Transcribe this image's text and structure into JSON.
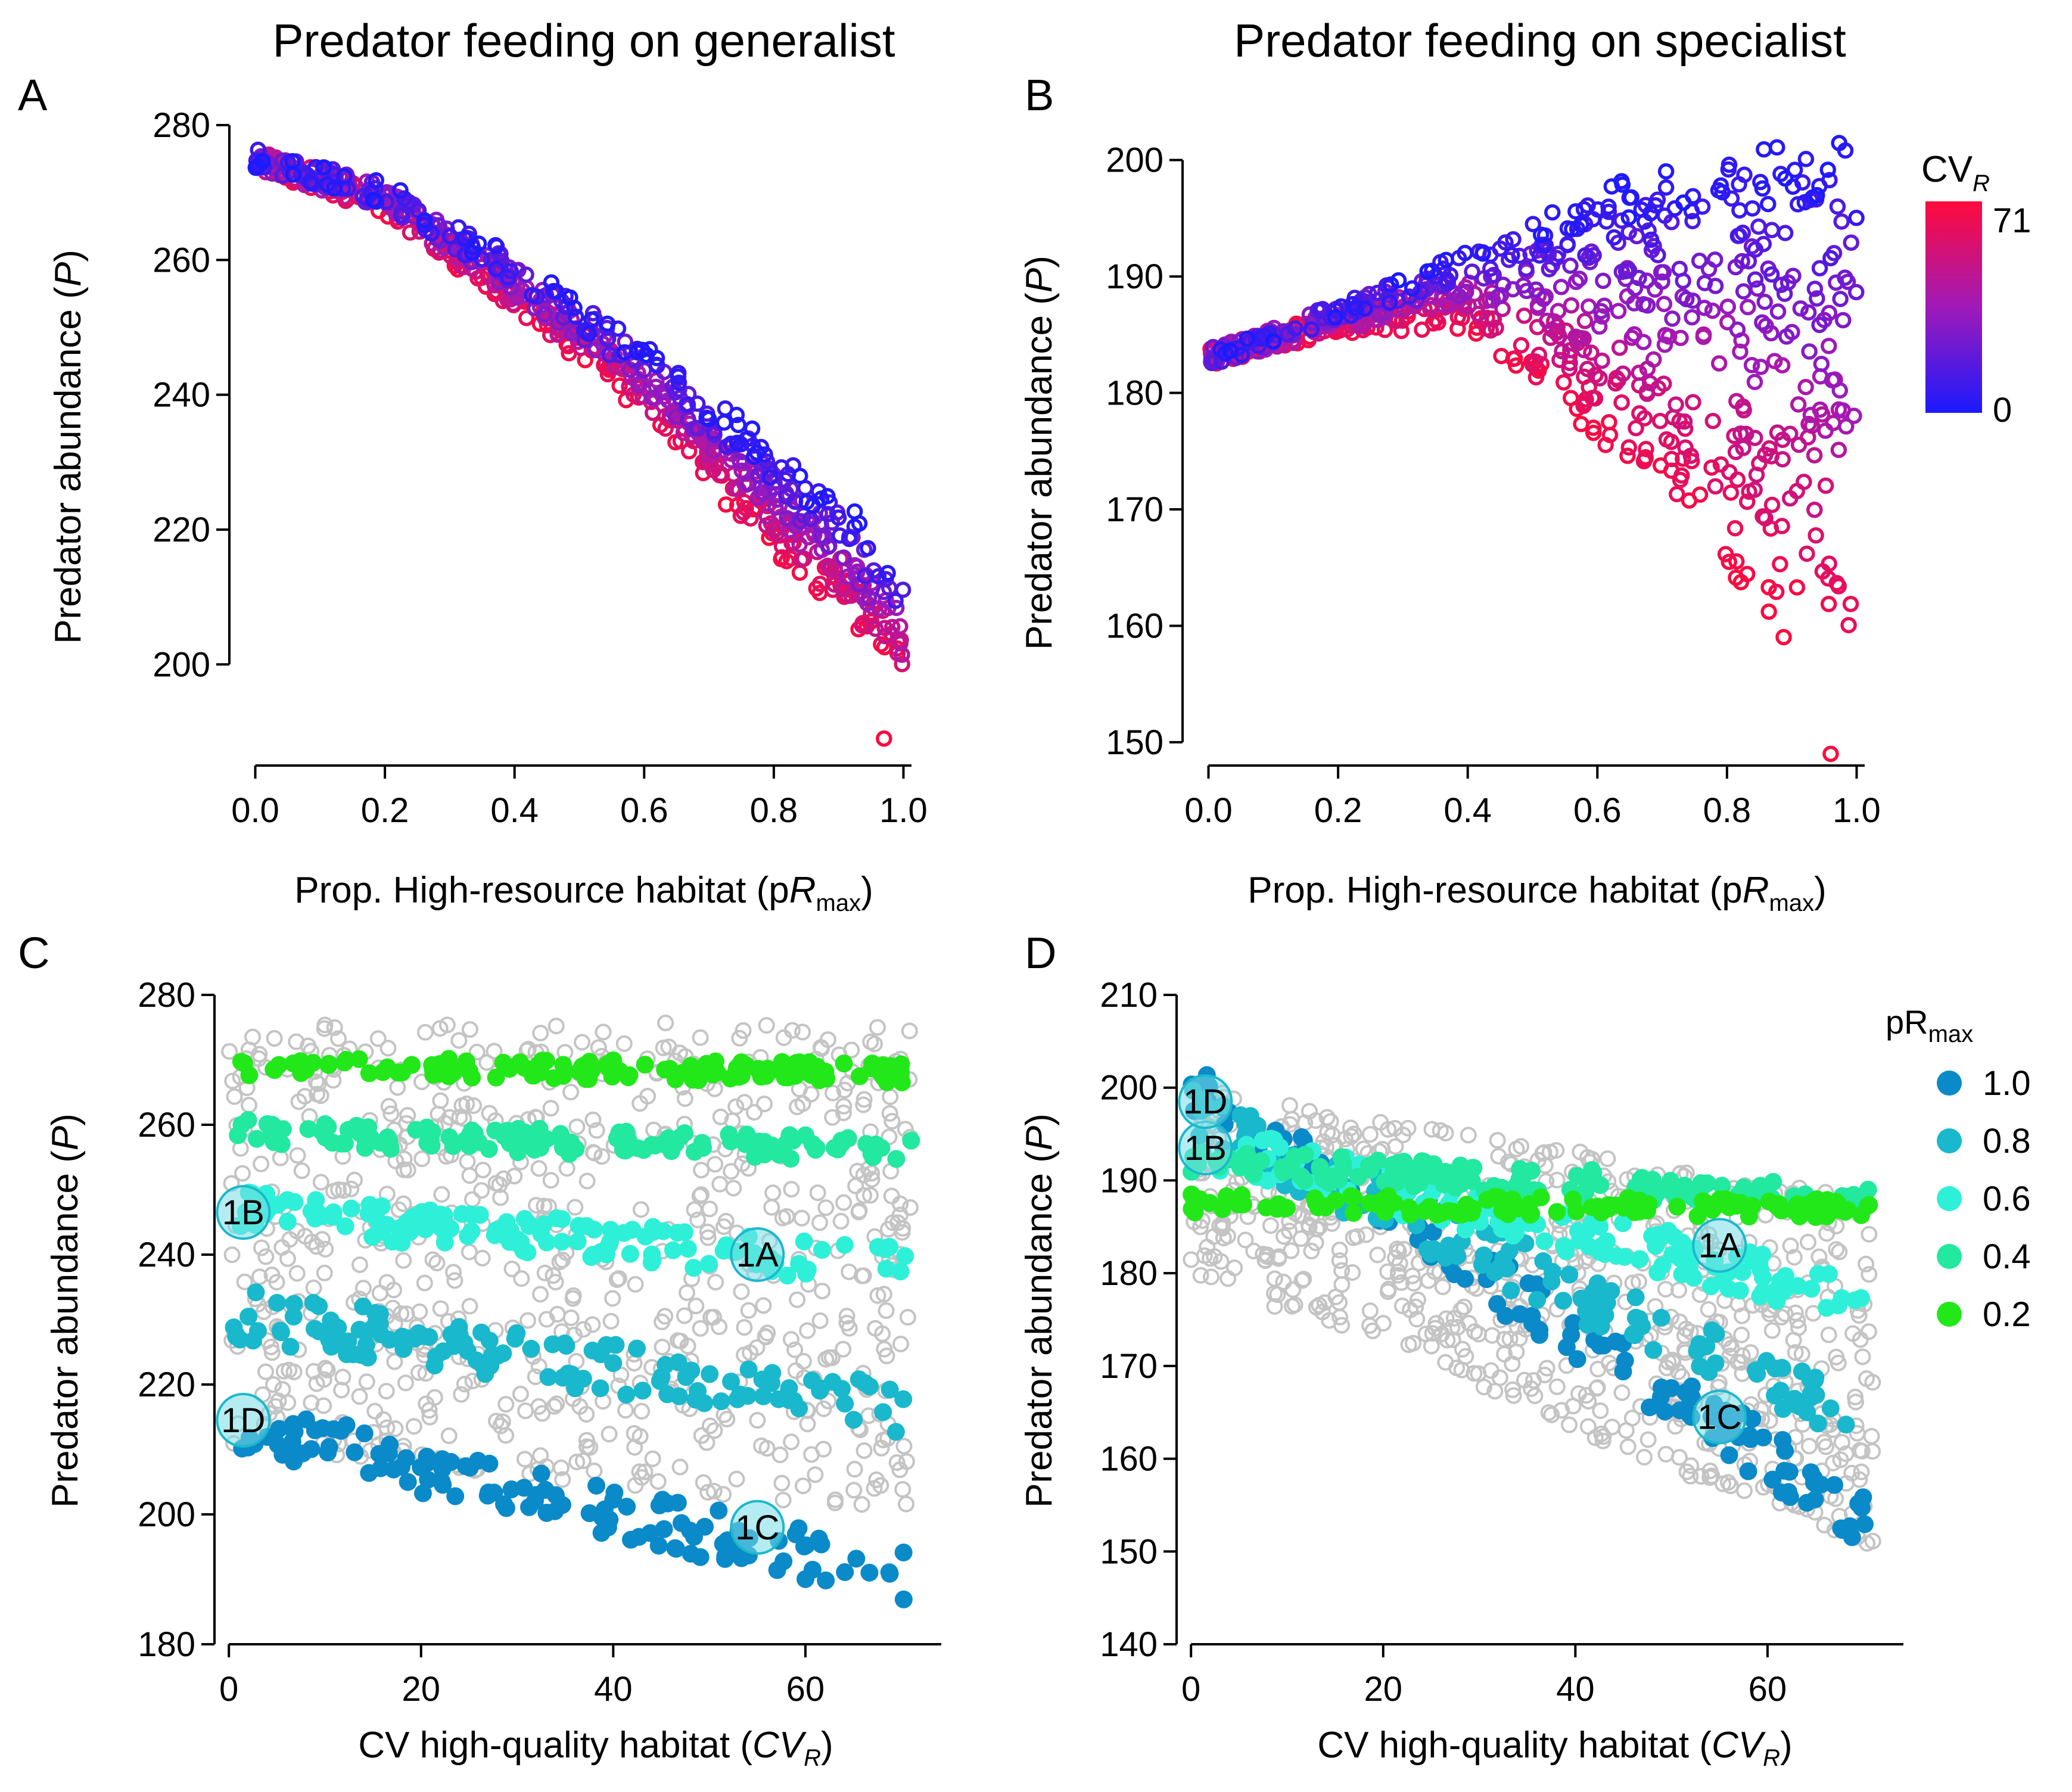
{
  "figure": {
    "colors": {
      "low_cv": "#1a1aff",
      "high_cv": "#ff0a3c",
      "grey": "#c4c4c4",
      "axis": "#000000"
    },
    "colorbar": {
      "title_main": "CV",
      "title_sub": "R",
      "max_label": "71",
      "min_label": "0"
    },
    "size_legend": {
      "title_main": "pR",
      "title_sub": "max",
      "items": [
        {
          "label": "1.0",
          "color": "#0a8ac8"
        },
        {
          "label": "0.8",
          "color": "#1ab8cc"
        },
        {
          "label": "0.6",
          "color": "#2ef0d8"
        },
        {
          "label": "0.4",
          "color": "#22e8a0"
        },
        {
          "label": "0.2",
          "color": "#22e81a"
        }
      ]
    }
  },
  "chart_data": [
    {
      "panel": "A",
      "type": "scatter",
      "title": "Predator feeding on generalist",
      "xlabel_main": "Prop. High-resource habitat (p",
      "xlabel_it": "R",
      "xlabel_sub": "max",
      "xlabel_end": ")",
      "ylabel_main": "Predator abundance (",
      "ylabel_it": "P",
      "ylabel_end": ")",
      "xlim": [
        -0.04,
        1.04
      ],
      "ylim": [
        185,
        280
      ],
      "xticks": [
        "0.0",
        "0.2",
        "0.4",
        "0.6",
        "0.8",
        "1.0"
      ],
      "yticks": [
        "200",
        "220",
        "240",
        "260",
        "280"
      ],
      "color_by": "CV_R",
      "trend_low_cv": {
        "x": [
          0.0,
          0.2,
          0.4,
          0.6,
          0.8,
          0.9,
          1.0
        ],
        "y": [
          275,
          270,
          259,
          246,
          231,
          223,
          212
        ]
      },
      "trend_high_cv": {
        "x": [
          0.0,
          0.2,
          0.4,
          0.6,
          0.8,
          0.9,
          1.0
        ],
        "y": [
          275,
          268,
          254,
          239,
          218,
          210,
          198
        ]
      },
      "min_point": {
        "x": 0.97,
        "y": 189
      }
    },
    {
      "panel": "B",
      "type": "scatter",
      "title": "Predator feeding on specialist",
      "xlabel_main": "Prop. High-resource habitat (p",
      "xlabel_it": "R",
      "xlabel_sub": "max",
      "xlabel_end": ")",
      "ylabel_main": "Predator abundance (",
      "ylabel_it": "P",
      "ylabel_end": ")",
      "xlim": [
        -0.04,
        1.04
      ],
      "ylim": [
        148,
        203
      ],
      "xticks": [
        "0.0",
        "0.2",
        "0.4",
        "0.6",
        "0.8",
        "1.0"
      ],
      "yticks": [
        "150",
        "160",
        "170",
        "180",
        "190",
        "200"
      ],
      "color_by": "CV_R",
      "trend_low_cv": {
        "x": [
          0.0,
          0.2,
          0.4,
          0.6,
          0.8,
          1.0
        ],
        "y": [
          183,
          187,
          192,
          196,
          199,
          200
        ]
      },
      "trend_high_cv": {
        "x": [
          0.0,
          0.2,
          0.4,
          0.6,
          0.8,
          1.0
        ],
        "y": [
          183,
          186,
          186,
          176,
          166,
          155
        ]
      },
      "min_point": {
        "x": 0.96,
        "y": 149
      }
    },
    {
      "panel": "C",
      "type": "scatter",
      "xlabel_main": "CV high-quality habitat (",
      "xlabel_it": "CV",
      "xlabel_sub": "R",
      "xlabel_end": ")",
      "ylabel_main": "Predator abundance (",
      "ylabel_it": "P",
      "ylabel_end": ")",
      "xlim": [
        -1.5,
        76
      ],
      "ylim": [
        180,
        280
      ],
      "xticks": [
        "0",
        "20",
        "40",
        "60"
      ],
      "xtick_values": [
        0,
        20,
        40,
        60
      ],
      "yticks": [
        "180",
        "200",
        "220",
        "240",
        "260",
        "280"
      ],
      "series": [
        {
          "name": "1.0",
          "x_range": [
            0,
            71
          ],
          "y_start": 214,
          "y_end": 190,
          "spread": 4
        },
        {
          "name": "0.8",
          "x_range": [
            0,
            71
          ],
          "y_start": 231,
          "y_end": 216,
          "spread": 4
        },
        {
          "name": "0.6",
          "x_range": [
            0,
            71
          ],
          "y_start": 247,
          "y_end": 238,
          "spread": 3
        },
        {
          "name": "0.4",
          "x_range": [
            0,
            71
          ],
          "y_start": 259,
          "y_end": 256,
          "spread": 2
        },
        {
          "name": "0.2",
          "x_range": [
            0,
            71
          ],
          "y_start": 269,
          "y_end": 268,
          "spread": 1.5
        }
      ],
      "grey_range": [
        200,
        276
      ],
      "annotations": [
        {
          "label": "1A",
          "x": 55,
          "y": 240
        },
        {
          "label": "1B",
          "x": 1.5,
          "y": 246.5
        },
        {
          "label": "1C",
          "x": 55,
          "y": 198
        },
        {
          "label": "1D",
          "x": 1.5,
          "y": 214.5
        }
      ]
    },
    {
      "panel": "D",
      "type": "scatter",
      "xlabel_main": "CV high-quality habitat (",
      "xlabel_it": "CV",
      "xlabel_sub": "R",
      "xlabel_end": ")",
      "ylabel_main": "Predator abundance (",
      "ylabel_it": "P",
      "ylabel_end": ")",
      "xlim": [
        -1.5,
        76
      ],
      "ylim": [
        140,
        210
      ],
      "xticks": [
        "0",
        "20",
        "40",
        "60"
      ],
      "xtick_values": [
        0,
        20,
        40,
        60
      ],
      "yticks": [
        "140",
        "150",
        "160",
        "170",
        "180",
        "190",
        "200",
        "210"
      ],
      "series": [
        {
          "name": "1.0",
          "x_range": [
            0,
            71
          ],
          "y_start": 200,
          "y_end": 153,
          "spread": 3
        },
        {
          "name": "0.8",
          "x_range": [
            0,
            71
          ],
          "y_start": 197,
          "y_end": 163,
          "spread": 3
        },
        {
          "name": "0.6",
          "x_range": [
            0,
            71
          ],
          "y_start": 194,
          "y_end": 177,
          "spread": 2.5
        },
        {
          "name": "0.4",
          "x_range": [
            0,
            71
          ],
          "y_start": 192,
          "y_end": 188,
          "spread": 1.5
        },
        {
          "name": "0.2",
          "x_range": [
            0,
            71
          ],
          "y_start": 187.5,
          "y_end": 187,
          "spread": 1
        }
      ],
      "grey_range": [
        150,
        200
      ],
      "annotations": [
        {
          "label": "1A",
          "x": 55,
          "y": 183
        },
        {
          "label": "1B",
          "x": 1.5,
          "y": 193.5
        },
        {
          "label": "1C",
          "x": 55,
          "y": 164.5
        },
        {
          "label": "1D",
          "x": 1.5,
          "y": 198.5
        }
      ]
    }
  ]
}
